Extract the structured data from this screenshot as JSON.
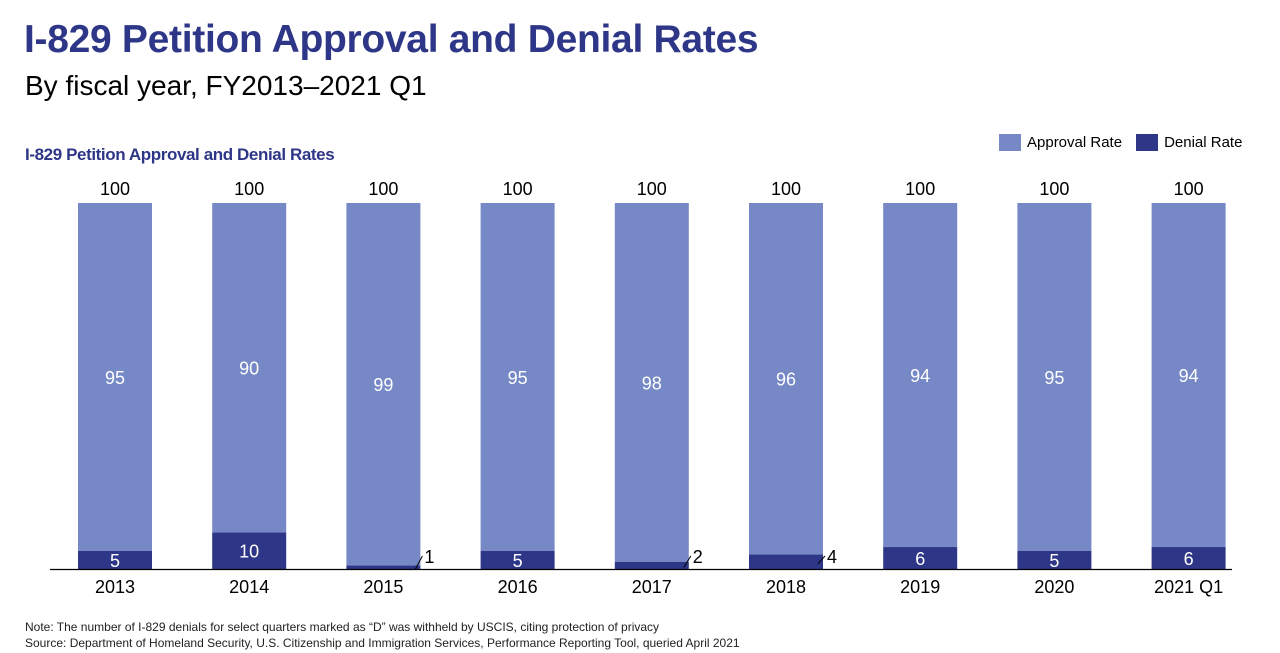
{
  "header": {
    "title": "I-829 Petition Approval and Denial Rates",
    "subtitle": "By fiscal year, FY2013–2021 Q1"
  },
  "footer": {
    "note": "Note: The number of I-829 denials for select quarters marked as “D” was withheld by USCIS, citing protection of privacy",
    "source": "Source: Department of Homeland Security, U.S. Citizenship and Immigration Services, Performance Reporting Tool, queried April 2021"
  },
  "chart_data": {
    "type": "bar",
    "stacked": true,
    "title": "I-829 Petition Approval and Denial Rates",
    "xlabel": "",
    "ylabel": "",
    "ylim": [
      0,
      100
    ],
    "grid": false,
    "legend_position": "top-right",
    "categories": [
      "2013",
      "2014",
      "2015",
      "2016",
      "2017",
      "2018",
      "2019",
      "2020",
      "2021 Q1"
    ],
    "series": [
      {
        "name": "Denial Rate",
        "color": "#2e3687",
        "values": [
          5,
          10,
          1,
          5,
          2,
          4,
          6,
          5,
          6
        ]
      },
      {
        "name": "Approval Rate",
        "color": "#7689c6",
        "values": [
          95,
          90,
          99,
          95,
          98,
          96,
          94,
          95,
          94
        ]
      }
    ],
    "totals": [
      100,
      100,
      100,
      100,
      100,
      100,
      100,
      100,
      100
    ],
    "legend": [
      "Approval Rate",
      "Denial Rate"
    ]
  }
}
